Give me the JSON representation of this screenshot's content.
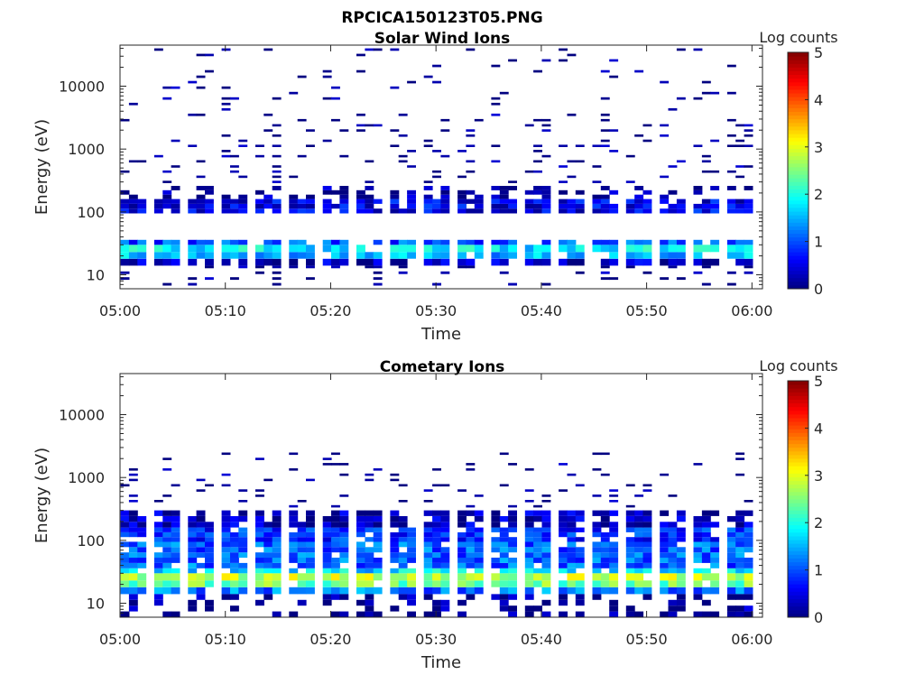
{
  "figure": {
    "filename_title": "RPCICA150123T05.PNG"
  },
  "chart_data": [
    {
      "type": "heatmap",
      "title": "Solar Wind Ions",
      "xlabel": "Time",
      "ylabel": "Energy (eV)",
      "x_range": [
        "05:00",
        "06:01"
      ],
      "x_ticks": [
        "05:00",
        "05:10",
        "05:20",
        "05:30",
        "05:40",
        "05:50",
        "06:00"
      ],
      "y_scale": "log",
      "y_range": [
        6,
        45000
      ],
      "y_ticks": [
        "10",
        "100",
        "1000",
        "10000"
      ],
      "colorbar": {
        "label": "Log counts",
        "range": [
          0,
          5
        ],
        "ticks": [
          "0",
          "1",
          "2",
          "3",
          "4",
          "5"
        ],
        "colormap": "jet"
      },
      "grid": false,
      "sweep_period_min": 3.2,
      "sweep_count": 19,
      "bands": [
        {
          "energy_eV": [
            14,
            18
          ],
          "level": 0.3,
          "coverage": 0.85
        },
        {
          "energy_eV": [
            18,
            23
          ],
          "level": 1.5,
          "coverage": 0.9
        },
        {
          "energy_eV": [
            23,
            30
          ],
          "level": 1.8,
          "coverage": 0.95
        },
        {
          "energy_eV": [
            30,
            36
          ],
          "level": 1.0,
          "coverage": 0.85
        },
        {
          "energy_eV": [
            95,
            160
          ],
          "level": 0.55,
          "coverage": 0.9
        },
        {
          "energy_eV": [
            160,
            260
          ],
          "level": 0.1,
          "coverage": 0.45
        },
        {
          "energy_eV": [
            260,
            3000
          ],
          "level": 0.0,
          "coverage": 0.18
        },
        {
          "energy_eV": [
            3000,
            40000
          ],
          "level": 0.0,
          "coverage": 0.1
        },
        {
          "energy_eV": [
            6,
            14
          ],
          "level": 0.0,
          "coverage": 0.25
        }
      ]
    },
    {
      "type": "heatmap",
      "title": "Cometary Ions",
      "xlabel": "Time",
      "ylabel": "Energy (eV)",
      "x_range": [
        "05:00",
        "06:01"
      ],
      "x_ticks": [
        "05:00",
        "05:10",
        "05:20",
        "05:30",
        "05:40",
        "05:50",
        "06:00"
      ],
      "y_scale": "log",
      "y_range": [
        6,
        45000
      ],
      "y_ticks": [
        "10",
        "100",
        "1000",
        "10000"
      ],
      "colorbar": {
        "label": "Log counts",
        "range": [
          0,
          5
        ],
        "ticks": [
          "0",
          "1",
          "2",
          "3",
          "4",
          "5"
        ],
        "colormap": "jet"
      },
      "grid": false,
      "sweep_period_min": 3.2,
      "sweep_count": 19,
      "bands": [
        {
          "energy_eV": [
            14,
            18
          ],
          "level": 1.2,
          "coverage": 0.85
        },
        {
          "energy_eV": [
            18,
            23
          ],
          "level": 2.4,
          "coverage": 0.95
        },
        {
          "energy_eV": [
            23,
            30
          ],
          "level": 2.8,
          "coverage": 0.95
        },
        {
          "energy_eV": [
            30,
            36
          ],
          "level": 1.7,
          "coverage": 0.9
        },
        {
          "energy_eV": [
            36,
            95
          ],
          "level": 1.1,
          "coverage": 0.9
        },
        {
          "energy_eV": [
            95,
            160
          ],
          "level": 0.8,
          "coverage": 0.9
        },
        {
          "energy_eV": [
            160,
            300
          ],
          "level": 0.3,
          "coverage": 0.8
        },
        {
          "energy_eV": [
            300,
            2500
          ],
          "level": 0.0,
          "coverage": 0.12
        },
        {
          "energy_eV": [
            6,
            14
          ],
          "level": 0.1,
          "coverage": 0.35
        }
      ]
    }
  ]
}
